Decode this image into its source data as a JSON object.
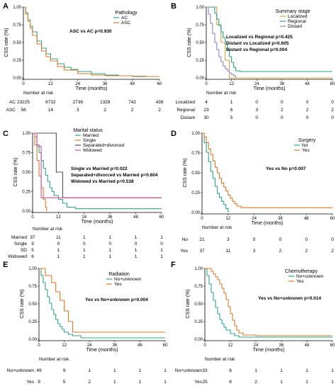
{
  "colors": {
    "AC": "#2ca58d",
    "ASC": "#d97a2b",
    "Localized": "#d9a23a",
    "Regional": "#2b9e8a",
    "Distant": "#8b84c8",
    "Married": "#2ca58d",
    "Single": "#e07b2a",
    "SD": "#8b84c8",
    "Widowed": "#d94ea0",
    "No": "#2ca58d",
    "Yes": "#d97a2b",
    "No+unknown": "#2ca58d"
  },
  "chart_data": [
    {
      "type": "line",
      "panel_letter": "A",
      "ylabel": "CSS rate (%)",
      "xlabel": "Time (months)",
      "xlim": [
        0,
        60
      ],
      "ylim": [
        0,
        1
      ],
      "x_ticks": [
        "0",
        "12",
        "24",
        "36",
        "48",
        "60"
      ],
      "y_ticks": [
        "0.00",
        "0.25",
        "0.50",
        "0.75",
        "1.00"
      ],
      "legend_title": "Pathology",
      "legend_position": "top-right",
      "annotations": [
        "ASC vs AC p=0.930"
      ],
      "series": [
        {
          "name": "AC",
          "x": [
            0,
            1,
            2,
            3,
            4,
            6,
            8,
            10,
            12,
            15,
            18,
            21,
            24,
            30,
            36,
            42,
            48,
            54,
            60
          ],
          "y": [
            1,
            0.92,
            0.82,
            0.73,
            0.65,
            0.52,
            0.42,
            0.34,
            0.27,
            0.2,
            0.15,
            0.12,
            0.09,
            0.06,
            0.04,
            0.03,
            0.025,
            0.02,
            0.02
          ]
        },
        {
          "name": "ASC",
          "x": [
            0,
            1,
            2,
            3,
            4,
            6,
            8,
            10,
            12,
            15,
            18,
            24,
            30,
            36,
            48,
            60
          ],
          "y": [
            1,
            0.9,
            0.8,
            0.7,
            0.6,
            0.48,
            0.38,
            0.3,
            0.24,
            0.16,
            0.11,
            0.06,
            0.04,
            0.03,
            0.02,
            0.02
          ]
        }
      ],
      "risk_table": {
        "title": "Number at risk",
        "rows": [
          {
            "label": "AC",
            "values": [
              "23225",
              "6732",
              "2736",
              "1328",
              "742",
              "438"
            ]
          },
          {
            "label": "ASC",
            "values": [
              "58",
              "14",
              "3",
              "2",
              "2",
              "2"
            ]
          }
        ]
      }
    },
    {
      "type": "line",
      "panel_letter": "B",
      "ylabel": "CSS rate (%)",
      "xlabel": "Time (months)",
      "xlim": [
        0,
        60
      ],
      "ylim": [
        0,
        1
      ],
      "x_ticks": [
        "0",
        "12",
        "24",
        "36",
        "48",
        "60"
      ],
      "y_ticks": [
        "0.00",
        "0.25",
        "0.50",
        "0.75",
        "1.00"
      ],
      "legend_title": "Summary stage",
      "legend_position": "top-right",
      "annotations": [
        "Localized vs Regional p=0.425",
        "Distant vs Localized p=0.605",
        "Distant vs Regional p=0.004"
      ],
      "series": [
        {
          "name": "Localized",
          "x": [
            0,
            5,
            5,
            7,
            7,
            9,
            9,
            11,
            11,
            60
          ],
          "y": [
            1,
            1,
            0.75,
            0.75,
            0.5,
            0.5,
            0.25,
            0.25,
            0,
            0
          ]
        },
        {
          "name": "Regional",
          "x": [
            0,
            3,
            4,
            5,
            6,
            7,
            8,
            9,
            10,
            11,
            12,
            13,
            14,
            16,
            18,
            60
          ],
          "y": [
            1,
            1,
            0.91,
            0.83,
            0.74,
            0.65,
            0.57,
            0.48,
            0.4,
            0.3,
            0.22,
            0.15,
            0.1,
            0.09,
            0.09,
            0.09
          ]
        },
        {
          "name": "Distant",
          "x": [
            0,
            1,
            2,
            3,
            4,
            5,
            6,
            7,
            8,
            9,
            10,
            11,
            12,
            13,
            14
          ],
          "y": [
            1,
            0.9,
            0.77,
            0.63,
            0.5,
            0.4,
            0.3,
            0.23,
            0.17,
            0.13,
            0.1,
            0.07,
            0.05,
            0.03,
            0
          ]
        }
      ],
      "risk_table": {
        "title": "Number at risk",
        "rows": [
          {
            "label": "Localized",
            "values": [
              "4",
              "1",
              "0",
              "0",
              "0",
              "0"
            ]
          },
          {
            "label": "Regional",
            "values": [
              "23",
              "6",
              "3",
              "2",
              "2",
              "2"
            ]
          },
          {
            "label": "Distant",
            "values": [
              "30",
              "5",
              "0",
              "0",
              "0",
              "0"
            ]
          }
        ]
      }
    },
    {
      "type": "line",
      "panel_letter": "C",
      "ylabel": "CSS rate (%)",
      "xlabel": "Time (months)",
      "xlim": [
        0,
        60
      ],
      "ylim": [
        0,
        1
      ],
      "x_ticks": [
        "0",
        "12",
        "24",
        "36",
        "48",
        "60"
      ],
      "y_ticks": [
        "0.00",
        "0.25",
        "0.50",
        "0.75",
        "1.00"
      ],
      "legend_title": "Marital status",
      "legend_position": "top-right",
      "annotations": [
        "Single vs Married p=0.022",
        "Separated+divorced vs Married p=0.604",
        "Widowed vs Married p=0.538"
      ],
      "series": [
        {
          "name": "Married",
          "x": [
            0,
            1,
            2,
            3,
            4,
            5,
            6,
            7,
            8,
            9,
            10,
            12,
            14,
            16,
            20,
            24,
            60
          ],
          "y": [
            1,
            0.95,
            0.85,
            0.75,
            0.65,
            0.55,
            0.46,
            0.38,
            0.3,
            0.25,
            0.2,
            0.15,
            0.1,
            0.05,
            0.03,
            0.03,
            0.03
          ]
        },
        {
          "name": "Single",
          "x": [
            0,
            1,
            2,
            3,
            4,
            5,
            6,
            6.5
          ],
          "y": [
            1,
            0.85,
            0.65,
            0.45,
            0.3,
            0.15,
            0.05,
            0
          ]
        },
        {
          "name": "Separated+divorced",
          "x": [
            0,
            11,
            11,
            14,
            14,
            60
          ],
          "y": [
            1,
            1,
            0.5,
            0.5,
            0.17,
            0.17
          ]
        },
        {
          "name": "Widowed",
          "x": [
            0,
            2,
            2,
            4,
            4,
            6,
            6,
            60
          ],
          "y": [
            1,
            1,
            0.83,
            0.83,
            0.17,
            0.17,
            0.17,
            0.17
          ]
        }
      ],
      "risk_table": {
        "title": "Number at risk",
        "rows": [
          {
            "label": "Married",
            "values": [
              "37",
              "11",
              "1",
              "1",
              "1",
              "1"
            ]
          },
          {
            "label": "Single",
            "values": [
              "9",
              "0",
              "0",
              "0",
              "0",
              "0"
            ]
          },
          {
            "label": "SD",
            "values": [
              "5",
              "1",
              "1",
              "1",
              "1",
              "1"
            ]
          },
          {
            "label": "Widowed",
            "values": [
              "6",
              "1",
              "1",
              "1",
              "1",
              "1"
            ]
          }
        ]
      }
    },
    {
      "type": "line",
      "panel_letter": "D",
      "ylabel": "CSS rate (%)",
      "xlabel": "Time (months)",
      "xlim": [
        0,
        60
      ],
      "ylim": [
        0,
        1
      ],
      "x_ticks": [
        "0",
        "12",
        "24",
        "36",
        "48",
        "60"
      ],
      "y_ticks": [
        "0.00",
        "0.25",
        "0.50",
        "0.75",
        "1.00"
      ],
      "legend_title": "Surgery",
      "legend_position": "top-right",
      "annotations": [
        "Yes vs No p=0.007"
      ],
      "series": [
        {
          "name": "No",
          "x": [
            0,
            1,
            2,
            3,
            4,
            5,
            6,
            7,
            8,
            9,
            10,
            11,
            12
          ],
          "y": [
            1,
            0.88,
            0.76,
            0.64,
            0.52,
            0.43,
            0.33,
            0.24,
            0.19,
            0.14,
            0.1,
            0.05,
            0
          ]
        },
        {
          "name": "Yes",
          "x": [
            0,
            1,
            2,
            3,
            4,
            5,
            6,
            7,
            8,
            9,
            10,
            11,
            12,
            13,
            14,
            15,
            16,
            18,
            60
          ],
          "y": [
            1,
            0.95,
            0.88,
            0.8,
            0.73,
            0.65,
            0.57,
            0.5,
            0.43,
            0.37,
            0.32,
            0.27,
            0.22,
            0.18,
            0.14,
            0.11,
            0.08,
            0.06,
            0.06
          ]
        }
      ],
      "risk_table": {
        "title": "Number at risk",
        "rows": [
          {
            "label": "No",
            "values": [
              "21",
              "3",
              "0",
              "0",
              "0",
              "0"
            ]
          },
          {
            "label": "Yes",
            "values": [
              "37",
              "11",
              "3",
              "2",
              "2",
              "2"
            ]
          }
        ]
      }
    },
    {
      "type": "line",
      "panel_letter": "E",
      "ylabel": "CSS rate (%)",
      "xlabel": "Time (months)",
      "xlim": [
        0,
        60
      ],
      "ylim": [
        0,
        1
      ],
      "x_ticks": [
        "0",
        "12",
        "24",
        "36",
        "48",
        "60"
      ],
      "y_ticks": [
        "0.00",
        "0.25",
        "0.50",
        "0.75",
        "1.00"
      ],
      "legend_title": "Radiation",
      "legend_position": "top-right",
      "annotations": [
        "Yes vs No+unknown p=0.004"
      ],
      "series": [
        {
          "name": "No+unknown",
          "x": [
            0,
            1,
            2,
            3,
            4,
            5,
            6,
            7,
            8,
            9,
            10,
            11,
            12,
            14,
            16,
            20,
            24,
            60
          ],
          "y": [
            1,
            0.9,
            0.8,
            0.7,
            0.6,
            0.51,
            0.42,
            0.35,
            0.28,
            0.22,
            0.18,
            0.14,
            0.1,
            0.07,
            0.05,
            0.02,
            0.02,
            0.02
          ]
        },
        {
          "name": "Yes",
          "x": [
            0,
            3,
            3,
            6,
            6,
            8,
            8,
            10,
            10,
            12,
            12,
            14,
            14,
            16,
            16,
            60
          ],
          "y": [
            1,
            1,
            0.9,
            0.9,
            0.8,
            0.8,
            0.67,
            0.67,
            0.55,
            0.55,
            0.4,
            0.4,
            0.25,
            0.25,
            0.1,
            0.1
          ]
        }
      ],
      "risk_table": {
        "title": "Number at risk",
        "rows": [
          {
            "label": "No+unknown",
            "values": [
              "49",
              "9",
              "1",
              "1",
              "1",
              "1"
            ]
          },
          {
            "label": "Yes",
            "values": [
              "9",
              "5",
              "2",
              "1",
              "1",
              "1"
            ]
          }
        ]
      }
    },
    {
      "type": "line",
      "panel_letter": "F",
      "ylabel": "CSS rate (%)",
      "xlabel": "Time (months)",
      "xlim": [
        0,
        60
      ],
      "ylim": [
        0,
        1
      ],
      "x_ticks": [
        "0",
        "12",
        "24",
        "36",
        "48",
        "60"
      ],
      "y_ticks": [
        "0.00",
        "0.25",
        "0.50",
        "0.75",
        "1.00"
      ],
      "legend_title": "Chemotherapy",
      "legend_position": "top-right",
      "annotations": [
        "Yes vs No+unknown p=0.014"
      ],
      "series": [
        {
          "name": "No+unknown",
          "x": [
            0,
            1,
            2,
            3,
            4,
            5,
            6,
            7,
            8,
            9,
            10,
            12,
            14,
            16,
            20,
            24,
            60
          ],
          "y": [
            1,
            0.9,
            0.78,
            0.66,
            0.55,
            0.45,
            0.36,
            0.28,
            0.22,
            0.17,
            0.13,
            0.08,
            0.05,
            0.03,
            0.03,
            0.03,
            0.03
          ]
        },
        {
          "name": "Yes",
          "x": [
            0,
            2,
            3,
            4,
            5,
            6,
            7,
            8,
            9,
            10,
            11,
            12,
            13,
            14,
            15,
            16,
            18,
            24,
            60
          ],
          "y": [
            1,
            1,
            0.96,
            0.92,
            0.88,
            0.84,
            0.78,
            0.72,
            0.65,
            0.56,
            0.46,
            0.36,
            0.27,
            0.19,
            0.13,
            0.09,
            0.06,
            0.05,
            0.05
          ]
        }
      ],
      "risk_table": {
        "title": "Number at risk",
        "rows": [
          {
            "label": "No+unknown",
            "values": [
              "33",
              "6",
              "1",
              "1",
              "1",
              "1"
            ]
          },
          {
            "label": "Yes",
            "values": [
              "25",
              "8",
              "2",
              "1",
              "1",
              "1"
            ]
          }
        ]
      }
    }
  ]
}
